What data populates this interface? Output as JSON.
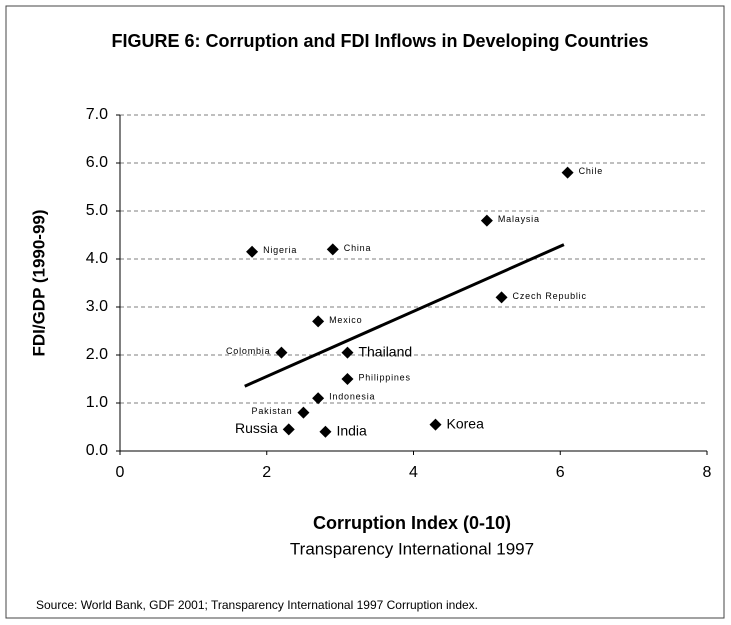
{
  "chart_data": {
    "type": "scatter",
    "title": "FIGURE 6: Corruption and FDI Inflows in Developing Countries",
    "x_label": "Corruption Index (0-10)",
    "x_sublabel": "Transparency International 1997",
    "y_label": "FDI/GDP (1990-99)",
    "source": "Source: World Bank, GDF 2001; Transparency International 1997 Corruption index.",
    "color": "#000000",
    "labels": [
      "Chile",
      "Malaysia",
      "Nigeria",
      "China",
      "Czech Republic",
      "Mexico",
      "Colombia",
      "Thailand",
      "Philippines",
      "Indonesia",
      "Pakistan",
      "Russia",
      "India",
      "Korea"
    ],
    "x": [
      6.1,
      5.0,
      1.8,
      2.9,
      5.2,
      2.7,
      2.2,
      3.1,
      3.1,
      2.7,
      2.5,
      2.3,
      2.8,
      4.3
    ],
    "y": [
      5.8,
      4.8,
      4.15,
      4.2,
      3.2,
      2.7,
      2.05,
      2.05,
      1.5,
      1.1,
      0.8,
      0.45,
      0.4,
      0.55
    ],
    "trendline": {
      "x": [
        1.7,
        6.05
      ],
      "y": [
        1.35,
        4.3
      ]
    },
    "xlim": [
      0,
      8
    ],
    "xticks": [
      0,
      2,
      4,
      6,
      8
    ],
    "ylim": [
      0,
      7
    ],
    "yticks": [
      {
        "value": 0,
        "label": "0.0"
      },
      {
        "value": 1,
        "label": "1.0"
      },
      {
        "value": 2,
        "label": "2.0"
      },
      {
        "value": 3,
        "label": "3.0"
      },
      {
        "value": 4,
        "label": "4.0"
      },
      {
        "value": 5,
        "label": "5.0"
      },
      {
        "value": 6,
        "label": "6.0"
      },
      {
        "value": 7,
        "label": "7.0"
      }
    ],
    "grid": true
  }
}
